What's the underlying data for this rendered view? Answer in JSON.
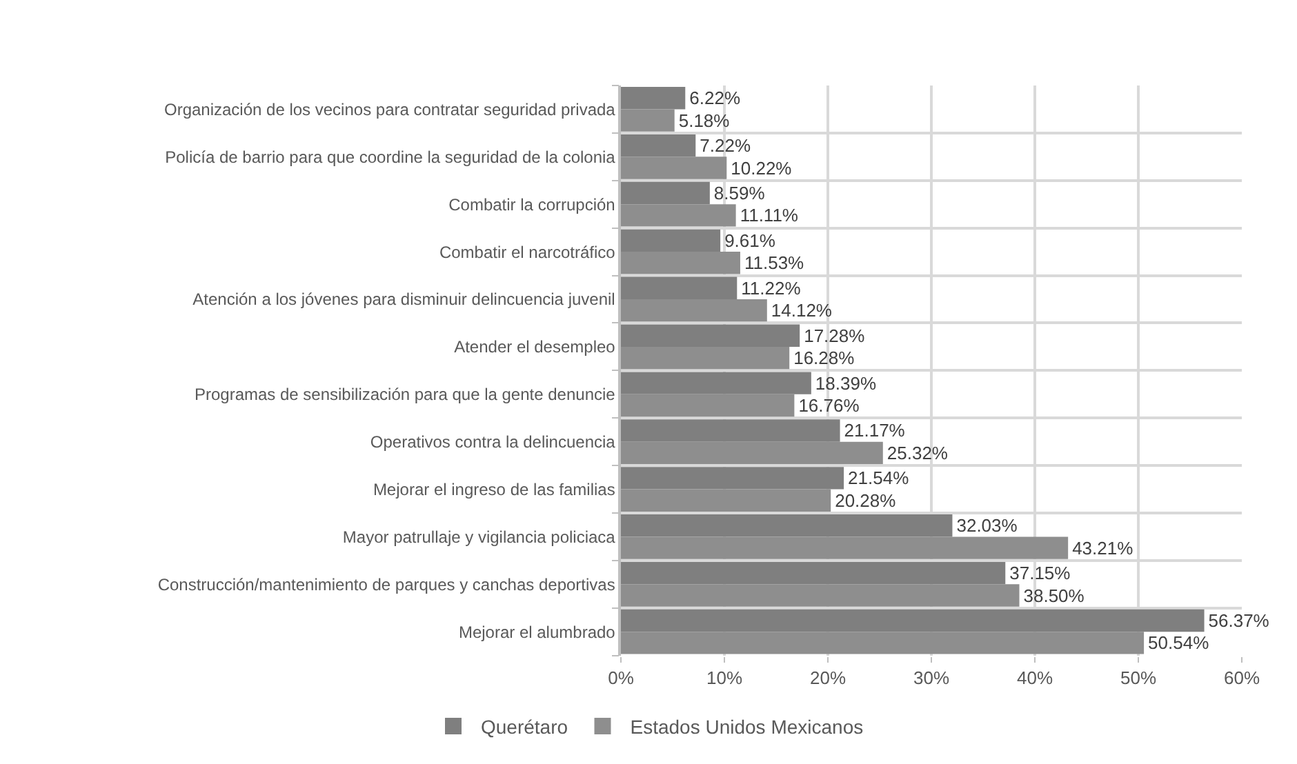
{
  "chart_data": {
    "type": "bar",
    "orientation": "horizontal",
    "categories": [
      "Organización de los vecinos para contratar seguridad privada",
      "Policía de barrio para que coordine la seguridad de la colonia",
      "Combatir la corrupción",
      "Combatir el narcotráfico",
      "Atención a los jóvenes para disminuir delincuencia juvenil",
      "Atender el desempleo",
      "Programas de sensibilización para que la gente denuncie",
      "Operativos contra la delincuencia",
      "Mejorar el ingreso de las familias",
      "Mayor patrullaje y vigilancia policiaca",
      "Construcción/mantenimiento de parques y canchas deportivas",
      "Mejorar el alumbrado"
    ],
    "series": [
      {
        "name": "Querétaro",
        "color": "#7f7f7f",
        "values": [
          6.22,
          7.22,
          8.59,
          9.61,
          11.22,
          17.28,
          18.39,
          21.17,
          21.54,
          32.03,
          37.15,
          56.37
        ],
        "value_labels": [
          "6.22%",
          "7.22%",
          "8.59%",
          "9.61%",
          "11.22%",
          "17.28%",
          "18.39%",
          "21.17%",
          "21.54%",
          "32.03%",
          "37.15%",
          "56.37%"
        ]
      },
      {
        "name": "Estados Unidos Mexicanos",
        "color": "#8e8e8e",
        "values": [
          5.18,
          10.22,
          11.11,
          11.53,
          14.12,
          16.28,
          16.76,
          25.32,
          20.28,
          43.21,
          38.5,
          50.54
        ],
        "value_labels": [
          "5.18%",
          "10.22%",
          "11.11%",
          "11.53%",
          "14.12%",
          "16.28%",
          "16.76%",
          "25.32%",
          "20.28%",
          "43.21%",
          "38.50%",
          "50.54%"
        ]
      }
    ],
    "xlim": [
      0,
      60
    ],
    "xticks": [
      {
        "value": 0,
        "label": "0%"
      },
      {
        "value": 10,
        "label": "10%"
      },
      {
        "value": 20,
        "label": "20%"
      },
      {
        "value": 30,
        "label": "30%"
      },
      {
        "value": 40,
        "label": "40%"
      },
      {
        "value": 50,
        "label": "50%"
      },
      {
        "value": 60,
        "label": "60%"
      }
    ],
    "grid": true,
    "legend": "bottom"
  }
}
